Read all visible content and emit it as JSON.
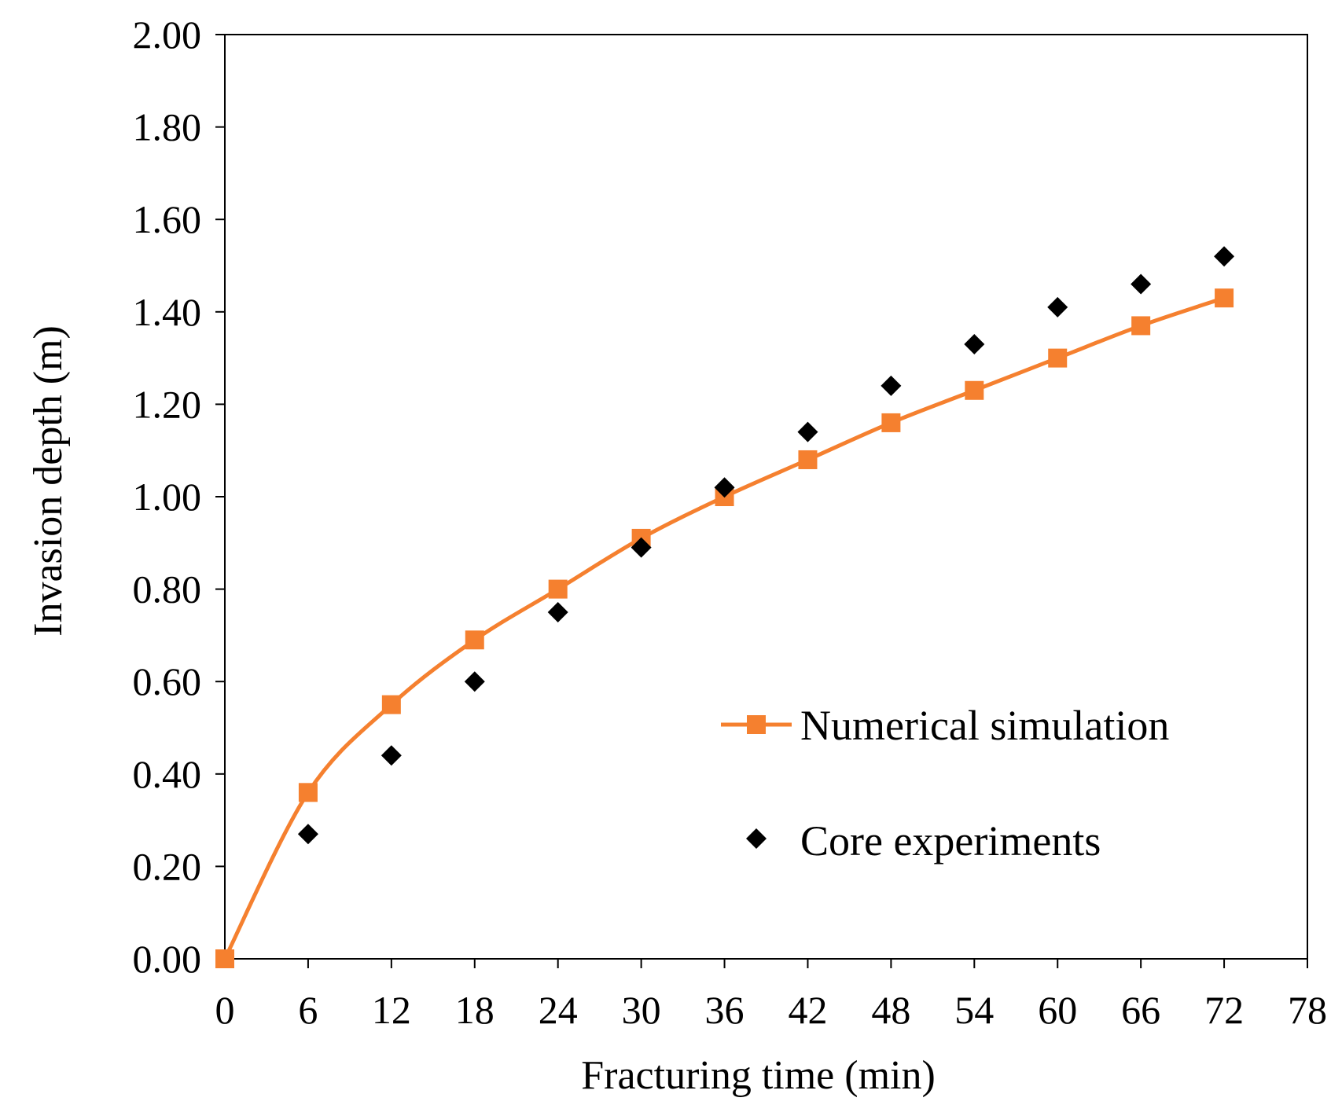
{
  "chart_data": {
    "type": "line",
    "title": "",
    "xlabel": "Fracturing time (min)",
    "ylabel": "Invasion depth (m)",
    "xlim": [
      0,
      78
    ],
    "ylim": [
      0,
      2.0
    ],
    "x_ticks": [
      0,
      6,
      12,
      18,
      24,
      30,
      36,
      42,
      48,
      54,
      60,
      66,
      72,
      78
    ],
    "y_ticks": [
      0,
      0.2,
      0.4,
      0.6,
      0.8,
      1.0,
      1.2,
      1.4,
      1.6,
      1.8,
      2.0
    ],
    "x_tick_labels": [
      "0",
      "6",
      "12",
      "18",
      "24",
      "30",
      "36",
      "42",
      "48",
      "54",
      "60",
      "66",
      "72",
      "78"
    ],
    "y_tick_labels": [
      "0.00",
      "0.20",
      "0.40",
      "0.60",
      "0.80",
      "1.00",
      "1.20",
      "1.40",
      "1.60",
      "1.80",
      "2.00"
    ],
    "grid": false,
    "legend_position": "right",
    "series": [
      {
        "name": "Numerical simulation",
        "style": "line-square",
        "color": "#f5802f",
        "x": [
          0,
          6,
          12,
          18,
          24,
          30,
          36,
          42,
          48,
          54,
          60,
          66,
          72
        ],
        "y": [
          0.0,
          0.36,
          0.55,
          0.69,
          0.8,
          0.91,
          1.0,
          1.08,
          1.16,
          1.23,
          1.3,
          1.37,
          1.43
        ]
      },
      {
        "name": "Core experiments",
        "style": "scatter-diamond",
        "color": "#000000",
        "x": [
          6,
          12,
          18,
          24,
          30,
          36,
          42,
          48,
          54,
          60,
          66,
          72
        ],
        "y": [
          0.27,
          0.44,
          0.6,
          0.75,
          0.89,
          1.02,
          1.14,
          1.24,
          1.33,
          1.41,
          1.46,
          1.52
        ]
      }
    ]
  }
}
